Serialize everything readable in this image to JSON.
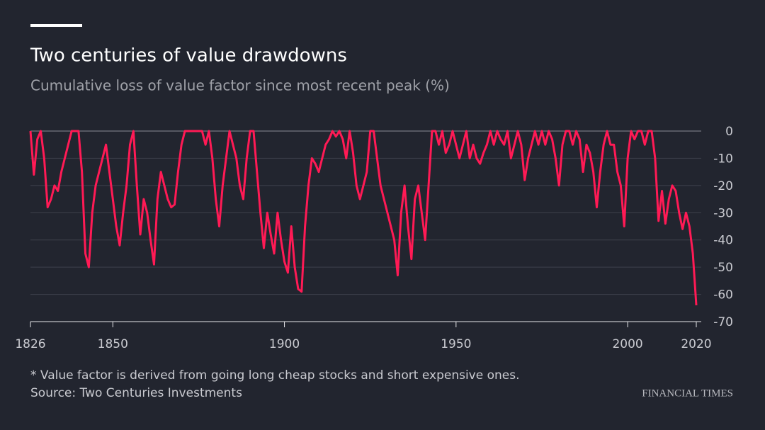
{
  "chart_data": {
    "type": "line",
    "title": "Two centuries of value drawdowns",
    "subtitle": "Cumulative loss of value factor since most recent peak (%)",
    "note": "* Value factor is derived from going long cheap stocks and short expensive ones.",
    "source": "Source: Two Centuries Investments",
    "brand": "FINANCIAL TIMES",
    "grid": true,
    "xlim": [
      1826,
      2020
    ],
    "xticks": [
      1826,
      1850,
      1900,
      1950,
      2000,
      2020
    ],
    "ylim": [
      -70,
      0
    ],
    "yticks": [
      0,
      -10,
      -20,
      -30,
      -40,
      -50,
      -60,
      -70
    ],
    "x": [
      1826,
      1827,
      1828,
      1829,
      1830,
      1831,
      1832,
      1833,
      1834,
      1835,
      1836,
      1837,
      1838,
      1839,
      1840,
      1841,
      1842,
      1843,
      1844,
      1845,
      1846,
      1847,
      1848,
      1849,
      1850,
      1851,
      1852,
      1853,
      1854,
      1855,
      1856,
      1857,
      1858,
      1859,
      1860,
      1861,
      1862,
      1863,
      1864,
      1865,
      1866,
      1867,
      1868,
      1869,
      1870,
      1871,
      1872,
      1873,
      1874,
      1875,
      1876,
      1877,
      1878,
      1879,
      1880,
      1881,
      1882,
      1883,
      1884,
      1885,
      1886,
      1887,
      1888,
      1889,
      1890,
      1891,
      1892,
      1893,
      1894,
      1895,
      1896,
      1897,
      1898,
      1899,
      1900,
      1901,
      1902,
      1903,
      1904,
      1905,
      1906,
      1907,
      1908,
      1909,
      1910,
      1911,
      1912,
      1913,
      1914,
      1915,
      1916,
      1917,
      1918,
      1919,
      1920,
      1921,
      1922,
      1923,
      1924,
      1925,
      1926,
      1927,
      1928,
      1929,
      1930,
      1931,
      1932,
      1933,
      1934,
      1935,
      1936,
      1937,
      1938,
      1939,
      1940,
      1941,
      1942,
      1943,
      1944,
      1945,
      1946,
      1947,
      1948,
      1949,
      1950,
      1951,
      1952,
      1953,
      1954,
      1955,
      1956,
      1957,
      1958,
      1959,
      1960,
      1961,
      1962,
      1963,
      1964,
      1965,
      1966,
      1967,
      1968,
      1969,
      1970,
      1971,
      1972,
      1973,
      1974,
      1975,
      1976,
      1977,
      1978,
      1979,
      1980,
      1981,
      1982,
      1983,
      1984,
      1985,
      1986,
      1987,
      1988,
      1989,
      1990,
      1991,
      1992,
      1993,
      1994,
      1995,
      1996,
      1997,
      1998,
      1999,
      2000,
      2001,
      2002,
      2003,
      2004,
      2005,
      2006,
      2007,
      2008,
      2009,
      2010,
      2011,
      2012,
      2013,
      2014,
      2015,
      2016,
      2017,
      2018,
      2019,
      2020
    ],
    "series": [
      {
        "color": "#ff1a55",
        "values": [
          0,
          -16,
          -3,
          0,
          -10,
          -28,
          -25,
          -20,
          -22,
          -15,
          -10,
          -5,
          0,
          0,
          0,
          -15,
          -45,
          -50,
          -30,
          -20,
          -15,
          -10,
          -5,
          -15,
          -25,
          -35,
          -42,
          -30,
          -20,
          -5,
          0,
          -20,
          -38,
          -25,
          -30,
          -40,
          -49,
          -25,
          -15,
          -20,
          -25,
          -28,
          -27,
          -15,
          -5,
          0,
          0,
          0,
          0,
          0,
          0,
          -5,
          0,
          -10,
          -25,
          -35,
          -20,
          -10,
          0,
          -5,
          -10,
          -20,
          -25,
          -10,
          0,
          0,
          -15,
          -30,
          -43,
          -30,
          -38,
          -45,
          -30,
          -40,
          -48,
          -52,
          -35,
          -50,
          -58,
          -59,
          -35,
          -20,
          -10,
          -12,
          -15,
          -10,
          -5,
          -3,
          0,
          -2,
          0,
          -3,
          -10,
          0,
          -8,
          -20,
          -25,
          -20,
          -15,
          0,
          0,
          -10,
          -20,
          -25,
          -30,
          -35,
          -40,
          -53,
          -30,
          -20,
          -35,
          -47,
          -25,
          -20,
          -30,
          -40,
          -20,
          0,
          0,
          -5,
          0,
          -8,
          -5,
          0,
          -5,
          -10,
          -5,
          0,
          -10,
          -5,
          -10,
          -12,
          -8,
          -5,
          0,
          -5,
          0,
          -3,
          -5,
          0,
          -10,
          -5,
          0,
          -5,
          -18,
          -10,
          -5,
          0,
          -5,
          0,
          -5,
          0,
          -3,
          -10,
          -20,
          -5,
          0,
          0,
          -5,
          0,
          -3,
          -15,
          -5,
          -8,
          -15,
          -28,
          -15,
          -5,
          0,
          -5,
          -5,
          -15,
          -20,
          -35,
          -10,
          0,
          -3,
          0,
          0,
          -5,
          0,
          0,
          -10,
          -33,
          -22,
          -34,
          -25,
          -20,
          -22,
          -30,
          -36,
          -30,
          -35,
          -45,
          -64
        ]
      }
    ]
  }
}
